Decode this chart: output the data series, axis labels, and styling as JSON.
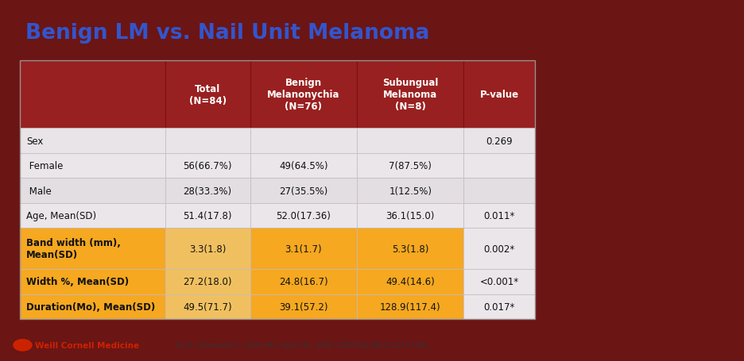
{
  "title": "Benign LM vs. Nail Unit Melanoma",
  "title_color": "#3355cc",
  "slide_bg": "#6B1515",
  "slide_panel_bg": "#e8e4e8",
  "header_bg": "#992020",
  "highlight_gold": "#F5A820",
  "highlight_light": "#F0C850",
  "row_light": "#E8E2E8",
  "row_alt": "#DDD8DD",
  "header_labels": [
    "Total\n(N=84)",
    "Benign\nMelanonychia\n(N=76)",
    "Subungual\nMelanoma\n(N=8)",
    "P-value"
  ],
  "rows": [
    {
      "label": "Sex",
      "col1": "",
      "col2": "",
      "col3": "",
      "pval": "0.269",
      "highlighted": false,
      "is_section": true
    },
    {
      "label": " Female",
      "col1": "56(66.7%)",
      "col2": "49(64.5%)",
      "col3": "7(87.5%)",
      "pval": "",
      "highlighted": false,
      "is_section": false
    },
    {
      "label": " Male",
      "col1": "28(33.3%)",
      "col2": "27(35.5%)",
      "col3": "1(12.5%)",
      "pval": "",
      "highlighted": false,
      "is_section": false
    },
    {
      "label": "Age, Mean(SD)",
      "col1": "51.4(17.8)",
      "col2": "52.0(17.36)",
      "col3": "36.1(15.0)",
      "pval": "0.011*",
      "highlighted": false,
      "is_section": false
    },
    {
      "label": "Band width (mm),\nMean(SD)",
      "col1": "3.3(1.8)",
      "col2": "3.1(1.7)",
      "col3": "5.3(1.8)",
      "pval": "0.002*",
      "highlighted": true,
      "is_section": false
    },
    {
      "label": "Width %, Mean(SD)",
      "col1": "27.2(18.0)",
      "col2": "24.8(16.7)",
      "col3": "49.4(14.6)",
      "pval": "<0.001*",
      "highlighted": true,
      "is_section": false
    },
    {
      "label": "Duration(Mo), Mean(SD)",
      "col1": "49.5(71.7)",
      "col2": "39.1(57.2)",
      "col3": "128.9(117.4)",
      "pval": "0.017*",
      "highlighted": true,
      "is_section": false
    }
  ],
  "footnote": "Ko D, Oromendia C, Scher RK, Lipner SR., JAAD, 2019 May;80(5):1272-1283.",
  "weill_text": "Weill Cornell Medicine"
}
